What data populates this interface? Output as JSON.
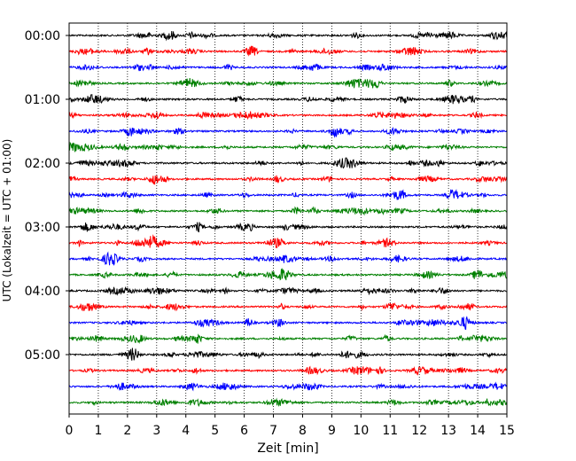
{
  "chart_data": {
    "type": "line",
    "chart_kind": "seismogram-helicorder",
    "xlabel": "Zeit  [min]",
    "ylabel": "UTC (Lokalzeit = UTC + 01:00)",
    "xlim": [
      0,
      15
    ],
    "x_ticks": [
      "0",
      "1",
      "2",
      "3",
      "4",
      "5",
      "6",
      "7",
      "8",
      "9",
      "10",
      "11",
      "12",
      "13",
      "14",
      "15"
    ],
    "y_ticks": [
      "00:00",
      "01:00",
      "02:00",
      "03:00",
      "04:00",
      "05:00"
    ],
    "trace_count": 24,
    "trace_interval_min": 15,
    "trace_colors": [
      "#000000",
      "#ff0000",
      "#0000ff",
      "#008000"
    ],
    "grid": "vertical dotted lines at each minute"
  }
}
